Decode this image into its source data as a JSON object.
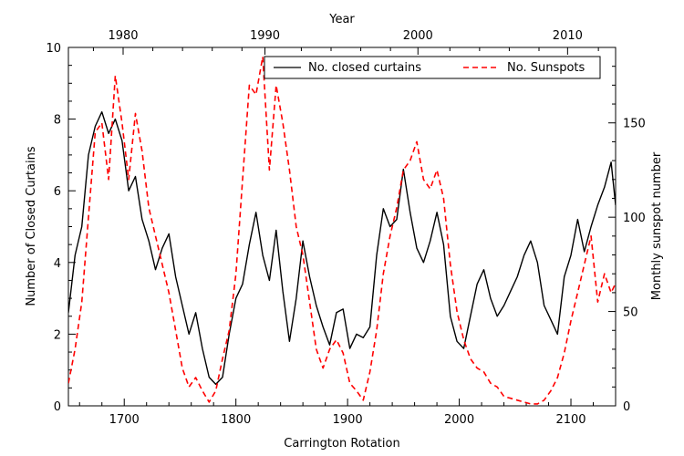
{
  "chart_data": {
    "type": "line",
    "x_top_title": "Year",
    "xlabel": "Carrington Rotation",
    "ylabel_left": "Number of Closed Curtains",
    "ylabel_right": "Monthly sunspot number",
    "xlim": [
      1650,
      2140
    ],
    "ylim_left": [
      0,
      10
    ],
    "ylim_right": [
      0,
      190
    ],
    "x_ticks": [
      "1700",
      "1800",
      "1900",
      "2000",
      "2100"
    ],
    "x_tick_values": [
      1700,
      1800,
      1900,
      2000,
      2100
    ],
    "y_left_ticks": [
      "0",
      "2",
      "4",
      "6",
      "8",
      "10"
    ],
    "y_left_tick_values": [
      0,
      2,
      4,
      6,
      8,
      10
    ],
    "y_right_ticks": [
      "0",
      "50",
      "100",
      "150"
    ],
    "y_right_tick_values": [
      0,
      50,
      100,
      150
    ],
    "year_ticks": [
      {
        "label": "1980",
        "rotation": 1699
      },
      {
        "label": "1990",
        "rotation": 1826
      },
      {
        "label": "2000",
        "rotation": 1963
      },
      {
        "label": "2010",
        "rotation": 2097
      }
    ],
    "legend": [
      {
        "label": "No. closed curtains",
        "style": "solid",
        "color": "#000000"
      },
      {
        "label": "No. Sunspots",
        "style": "dashed",
        "color": "#ff0000"
      }
    ],
    "series": [
      {
        "name": "No. closed curtains",
        "axis": "left",
        "color": "#000000",
        "x": [
          1650,
          1656,
          1662,
          1668,
          1674,
          1680,
          1686,
          1692,
          1698,
          1704,
          1710,
          1716,
          1722,
          1728,
          1734,
          1740,
          1746,
          1752,
          1758,
          1764,
          1770,
          1776,
          1782,
          1788,
          1794,
          1800,
          1806,
          1812,
          1818,
          1824,
          1830,
          1836,
          1842,
          1848,
          1854,
          1860,
          1866,
          1872,
          1878,
          1884,
          1890,
          1896,
          1902,
          1908,
          1914,
          1920,
          1926,
          1932,
          1938,
          1944,
          1950,
          1956,
          1962,
          1968,
          1974,
          1980,
          1986,
          1992,
          1998,
          2004,
          2010,
          2016,
          2022,
          2028,
          2034,
          2040,
          2046,
          2052,
          2058,
          2064,
          2070,
          2076,
          2082,
          2088,
          2094,
          2100,
          2106,
          2112,
          2118,
          2124,
          2130,
          2136,
          2140
        ],
        "values": [
          2.6,
          4.2,
          5.0,
          7.0,
          7.8,
          8.2,
          7.6,
          8.0,
          7.4,
          6.0,
          6.4,
          5.2,
          4.6,
          3.8,
          4.4,
          4.8,
          3.6,
          2.8,
          2.0,
          2.6,
          1.6,
          0.8,
          0.6,
          0.8,
          2.0,
          3.0,
          3.4,
          4.5,
          5.4,
          4.2,
          3.5,
          4.9,
          3.2,
          1.8,
          3.0,
          4.6,
          3.6,
          2.8,
          2.2,
          1.7,
          2.6,
          2.7,
          1.6,
          2.0,
          1.9,
          2.2,
          4.2,
          5.5,
          5.0,
          5.2,
          6.6,
          5.4,
          4.4,
          4.0,
          4.6,
          5.4,
          4.5,
          2.5,
          1.8,
          1.6,
          2.5,
          3.4,
          3.8,
          3.0,
          2.5,
          2.8,
          3.2,
          3.6,
          4.2,
          4.6,
          4.0,
          2.8,
          2.4,
          2.0,
          3.6,
          4.2,
          5.2,
          4.3,
          5.0,
          5.6,
          6.1,
          6.8,
          5.6
        ]
      },
      {
        "name": "No. Sunspots",
        "axis": "right",
        "color": "#ff0000",
        "x": [
          1650,
          1656,
          1662,
          1668,
          1674,
          1680,
          1686,
          1692,
          1698,
          1704,
          1710,
          1716,
          1722,
          1728,
          1734,
          1740,
          1746,
          1752,
          1758,
          1764,
          1770,
          1776,
          1782,
          1788,
          1794,
          1800,
          1806,
          1812,
          1818,
          1824,
          1830,
          1836,
          1842,
          1848,
          1854,
          1860,
          1866,
          1872,
          1878,
          1884,
          1890,
          1896,
          1902,
          1908,
          1914,
          1920,
          1926,
          1932,
          1938,
          1944,
          1950,
          1956,
          1962,
          1968,
          1974,
          1980,
          1986,
          1992,
          1998,
          2004,
          2010,
          2016,
          2022,
          2028,
          2034,
          2040,
          2046,
          2052,
          2058,
          2064,
          2070,
          2076,
          2082,
          2088,
          2094,
          2100,
          2106,
          2112,
          2118,
          2124,
          2130,
          2136,
          2140
        ],
        "values": [
          12,
          30,
          55,
          100,
          145,
          150,
          120,
          175,
          150,
          120,
          155,
          135,
          105,
          90,
          75,
          60,
          40,
          20,
          10,
          15,
          8,
          2,
          8,
          25,
          40,
          70,
          120,
          170,
          165,
          185,
          125,
          170,
          150,
          125,
          95,
          80,
          55,
          30,
          20,
          30,
          35,
          28,
          12,
          8,
          3,
          18,
          40,
          70,
          90,
          105,
          125,
          130,
          140,
          120,
          115,
          125,
          110,
          75,
          50,
          35,
          25,
          20,
          18,
          12,
          10,
          5,
          4,
          3,
          2,
          1,
          1,
          3,
          8,
          15,
          28,
          45,
          60,
          75,
          90,
          55,
          70,
          60,
          65
        ]
      }
    ]
  }
}
